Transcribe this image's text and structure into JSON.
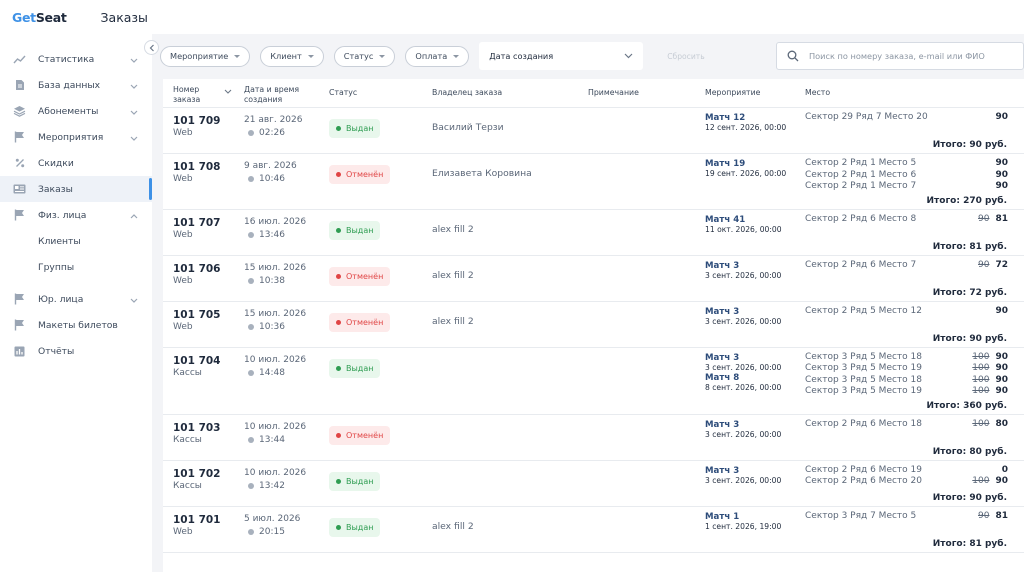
{
  "app": {
    "brand_part1": "Get",
    "brand_part2": "Seat",
    "page_title": "Заказы"
  },
  "sidebar": {
    "items": [
      {
        "label": "Статистика",
        "icon": "trend-icon",
        "chevron": "down"
      },
      {
        "label": "База данных",
        "icon": "document-icon",
        "chevron": "down"
      },
      {
        "label": "Абонементы",
        "icon": "layers-icon",
        "chevron": "down"
      },
      {
        "label": "Мероприятия",
        "icon": "flag-icon",
        "chevron": "down"
      },
      {
        "label": "Скидки",
        "icon": "percent-icon",
        "chevron": ""
      },
      {
        "label": "Заказы",
        "icon": "orders-icon",
        "chevron": "",
        "active": true
      },
      {
        "label": "Физ. лица",
        "icon": "flag-icon",
        "chevron": "up"
      },
      {
        "label": "Клиенты",
        "icon": "",
        "chevron": "",
        "sub": true
      },
      {
        "label": "Группы",
        "icon": "",
        "chevron": "",
        "sub": true
      },
      {
        "label": "Юр. лица",
        "icon": "flag-icon",
        "chevron": "down",
        "gap": true
      },
      {
        "label": "Макеты билетов",
        "icon": "flag-icon",
        "chevron": ""
      },
      {
        "label": "Отчёты",
        "icon": "chart-icon",
        "chevron": ""
      }
    ]
  },
  "filters": {
    "event": "Мероприятие",
    "client": "Клиент",
    "status": "Статус",
    "payment": "Оплата",
    "date_select": "Дата создания",
    "reset": "Сбросить",
    "search_placeholder": "Поиск по номеру заказа, e-mail или ФИО"
  },
  "table": {
    "headers": {
      "number": "Номер заказа",
      "datetime": "Дата и время создания",
      "status": "Статус",
      "owner": "Владелец заказа",
      "note": "Примечание",
      "event": "Мероприятие",
      "place": "Место"
    },
    "rows": [
      {
        "number": "101 709",
        "channel": "Web",
        "date": "21 авг. 2026",
        "time": "02:26",
        "status": "Выдан",
        "status_type": "ok",
        "owner": "Василий Терзи",
        "events": [
          {
            "name": "Матч 12",
            "date": "12 сент. 2026, 00:00"
          }
        ],
        "seats": [
          {
            "place": "Сектор 29 Ряд 7 Место 20",
            "old": "",
            "price": "90"
          }
        ],
        "total": "Итого: 90 руб."
      },
      {
        "number": "101 708",
        "channel": "Web",
        "date": "9 авг. 2026",
        "time": "10:46",
        "status": "Отменён",
        "status_type": "cancel",
        "owner": "Елизавета Коровина",
        "events": [
          {
            "name": "Матч 19",
            "date": "19 сент. 2026, 00:00"
          }
        ],
        "seats": [
          {
            "place": "Сектор 2 Ряд 1 Место 5",
            "old": "",
            "price": "90"
          },
          {
            "place": "Сектор 2 Ряд 1 Место 6",
            "old": "",
            "price": "90"
          },
          {
            "place": "Сектор 2 Ряд 1 Место 7",
            "old": "",
            "price": "90"
          }
        ],
        "total": "Итого: 270 руб."
      },
      {
        "number": "101 707",
        "channel": "Web",
        "date": "16 июл. 2026",
        "time": "13:46",
        "status": "Выдан",
        "status_type": "ok",
        "owner": "alex fill 2",
        "events": [
          {
            "name": "Матч 41",
            "date": "11 окт. 2026, 00:00"
          }
        ],
        "seats": [
          {
            "place": "Сектор 2 Ряд 6 Место 8",
            "old": "90",
            "price": "81"
          }
        ],
        "total": "Итого: 81 руб."
      },
      {
        "number": "101 706",
        "channel": "Web",
        "date": "15 июл. 2026",
        "time": "10:38",
        "status": "Отменён",
        "status_type": "cancel",
        "owner": "alex fill 2",
        "events": [
          {
            "name": "Матч 3",
            "date": "3 сент. 2026, 00:00"
          }
        ],
        "seats": [
          {
            "place": "Сектор 2 Ряд 6 Место 7",
            "old": "90",
            "price": "72"
          }
        ],
        "total": "Итого: 72 руб."
      },
      {
        "number": "101 705",
        "channel": "Web",
        "date": "15 июл. 2026",
        "time": "10:36",
        "status": "Отменён",
        "status_type": "cancel",
        "owner": "alex fill 2",
        "events": [
          {
            "name": "Матч 3",
            "date": "3 сент. 2026, 00:00"
          }
        ],
        "seats": [
          {
            "place": "Сектор 2 Ряд 5 Место 12",
            "old": "",
            "price": "90"
          }
        ],
        "total": "Итого: 90 руб."
      },
      {
        "number": "101 704",
        "channel": "Кассы",
        "date": "10 июл. 2026",
        "time": "14:48",
        "status": "Выдан",
        "status_type": "ok",
        "owner": "",
        "events": [
          {
            "name": "Матч 3",
            "date": "3 сент. 2026, 00:00"
          },
          {
            "name": "Матч 8",
            "date": "8 сент. 2026, 00:00"
          }
        ],
        "seats": [
          {
            "place": "Сектор 3 Ряд 5 Место 18",
            "old": "100",
            "price": "90"
          },
          {
            "place": "Сектор 3 Ряд 5 Место 19",
            "old": "100",
            "price": "90"
          },
          {
            "place": "Сектор 3 Ряд 5 Место 18",
            "old": "100",
            "price": "90"
          },
          {
            "place": "Сектор 3 Ряд 5 Место 19",
            "old": "100",
            "price": "90"
          }
        ],
        "total": "Итого: 360 руб."
      },
      {
        "number": "101 703",
        "channel": "Кассы",
        "date": "10 июл. 2026",
        "time": "13:44",
        "status": "Отменён",
        "status_type": "cancel",
        "owner": "",
        "events": [
          {
            "name": "Матч 3",
            "date": "3 сент. 2026, 00:00"
          }
        ],
        "seats": [
          {
            "place": "Сектор 2 Ряд 6 Место 18",
            "old": "100",
            "price": "80"
          }
        ],
        "total": "Итого: 80 руб."
      },
      {
        "number": "101 702",
        "channel": "Кассы",
        "date": "10 июл. 2026",
        "time": "13:42",
        "status": "Выдан",
        "status_type": "ok",
        "owner": "",
        "events": [
          {
            "name": "Матч 3",
            "date": "3 сент. 2026, 00:00"
          }
        ],
        "seats": [
          {
            "place": "Сектор 2 Ряд 6 Место 19",
            "old": "",
            "price": "0"
          },
          {
            "place": "Сектор 2 Ряд 6 Место 20",
            "old": "100",
            "price": "90"
          }
        ],
        "total": "Итого: 90 руб."
      },
      {
        "number": "101 701",
        "channel": "Web",
        "date": "5 июл. 2026",
        "time": "20:15",
        "status": "Выдан",
        "status_type": "ok",
        "owner": "alex fill 2",
        "events": [
          {
            "name": "Матч 1",
            "date": "1 сент. 2026, 19:00"
          }
        ],
        "seats": [
          {
            "place": "Сектор 3 Ряд 7 Место 5",
            "old": "90",
            "price": "81"
          }
        ],
        "total": "Итого: 81 руб."
      }
    ]
  }
}
